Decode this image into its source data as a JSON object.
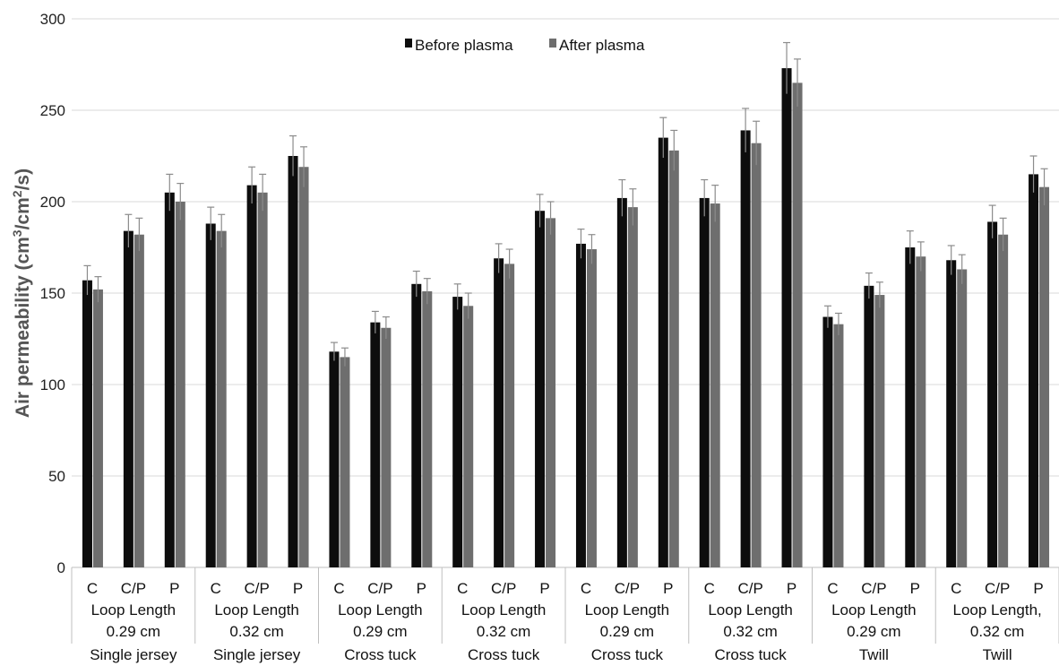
{
  "chart_data": {
    "type": "bar",
    "xlabel": "",
    "ylabel_main": "Air permeability (cm",
    "ylabel_sup1": "3",
    "ylabel_mid": "/cm",
    "ylabel_sup2": "2",
    "ylabel_end": "/s)",
    "ylim": [
      0,
      300
    ],
    "yticks": [
      "0",
      "50",
      "100",
      "150",
      "200",
      "250",
      "300"
    ],
    "grid": true,
    "legend_position": "top-center",
    "colors": {
      "before": "#0d0d0d",
      "after": "#6e6e6e",
      "error": "#8c8c8c"
    },
    "groups": [
      {
        "line1": "Loop Length",
        "line2": "0.29 cm",
        "line3": "Single jersey"
      },
      {
        "line1": "Loop Length",
        "line2": "0.32 cm",
        "line3": "Single jersey"
      },
      {
        "line1": "Loop Length",
        "line2": "0.29 cm",
        "line3": "Cross tuck"
      },
      {
        "line1": "Loop Length",
        "line2": "0.32 cm",
        "line3": "Cross tuck"
      },
      {
        "line1": "Loop Length",
        "line2": "0.29 cm",
        "line3": "Cross tuck"
      },
      {
        "line1": "Loop Length",
        "line2": "0.32 cm",
        "line3": "Cross tuck"
      },
      {
        "line1": "Loop Length",
        "line2": "0.29 cm",
        "line3": "Twill"
      },
      {
        "line1": "Loop Length,",
        "line2": "0.32 cm",
        "line3": "Twill"
      }
    ],
    "subcategories": [
      "C",
      "C/P",
      "P"
    ],
    "series": [
      {
        "name": "Before plasma",
        "values": [
          157,
          184,
          205,
          188,
          209,
          225,
          118,
          134,
          155,
          148,
          169,
          195,
          177,
          202,
          235,
          202,
          239,
          273,
          137,
          154,
          175,
          168,
          189,
          215
        ],
        "errors": [
          8,
          9,
          10,
          9,
          10,
          11,
          5,
          6,
          7,
          7,
          8,
          9,
          8,
          10,
          11,
          10,
          12,
          14,
          6,
          7,
          9,
          8,
          9,
          10
        ]
      },
      {
        "name": "After plasma",
        "values": [
          152,
          182,
          200,
          184,
          205,
          219,
          115,
          131,
          151,
          143,
          166,
          191,
          174,
          197,
          228,
          199,
          232,
          265,
          133,
          149,
          170,
          163,
          182,
          208
        ],
        "errors": [
          7,
          9,
          10,
          9,
          10,
          11,
          5,
          6,
          7,
          7,
          8,
          9,
          8,
          10,
          11,
          10,
          12,
          13,
          6,
          7,
          8,
          8,
          9,
          10
        ]
      }
    ]
  }
}
